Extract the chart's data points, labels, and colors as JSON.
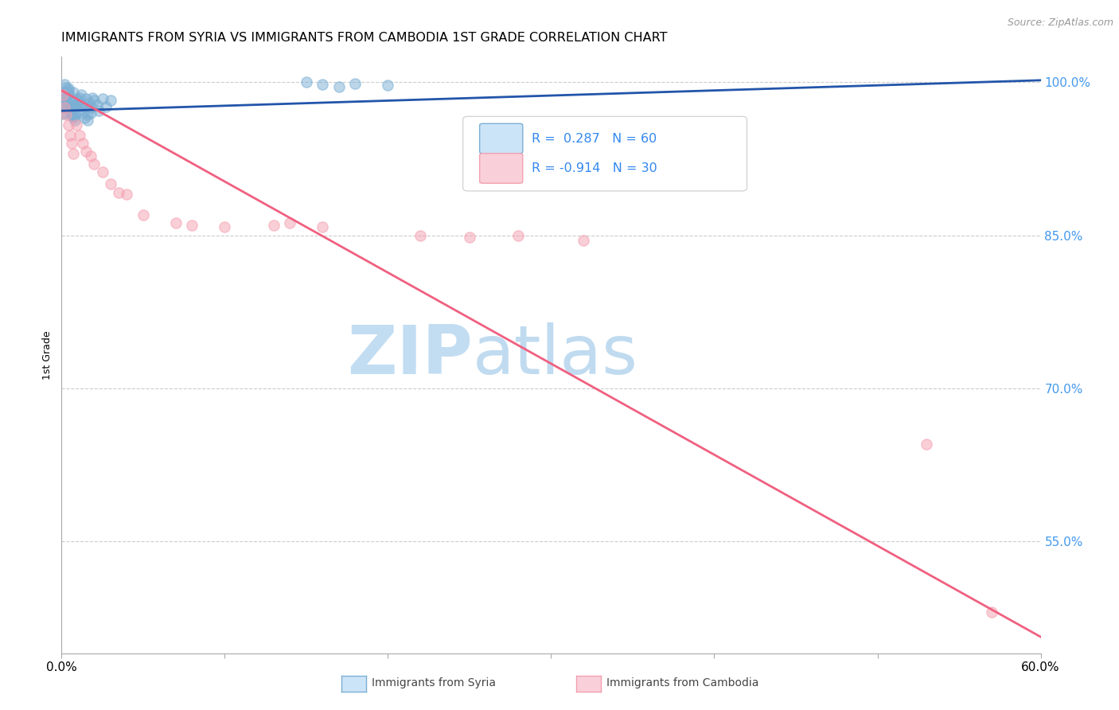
{
  "title": "IMMIGRANTS FROM SYRIA VS IMMIGRANTS FROM CAMBODIA 1ST GRADE CORRELATION CHART",
  "source": "Source: ZipAtlas.com",
  "ylabel": "1st Grade",
  "ylabel_right_ticks": [
    1.0,
    0.85,
    0.7,
    0.55
  ],
  "ylabel_right_labels": [
    "100.0%",
    "85.0%",
    "70.0%",
    "55.0%"
  ],
  "x_min": 0.0,
  "x_max": 0.6,
  "y_min": 0.44,
  "y_max": 1.025,
  "watermark_zip": "ZIP",
  "watermark_atlas": "atlas",
  "syria_color": "#7BAFD4",
  "cambodia_color": "#F4A0B0",
  "syria_line_color": "#2255AA",
  "cambodia_line_color": "#F06080",
  "syria_R": 0.287,
  "syria_N": 60,
  "cambodia_R": -0.914,
  "cambodia_N": 30,
  "syria_scatter_x": [
    0.001,
    0.002,
    0.001,
    0.003,
    0.002,
    0.004,
    0.003,
    0.005,
    0.004,
    0.006,
    0.003,
    0.002,
    0.001,
    0.005,
    0.006,
    0.007,
    0.004,
    0.003,
    0.008,
    0.009,
    0.002,
    0.005,
    0.007,
    0.006,
    0.004,
    0.003,
    0.008,
    0.006,
    0.005,
    0.007,
    0.01,
    0.009,
    0.008,
    0.011,
    0.012,
    0.01,
    0.013,
    0.014,
    0.012,
    0.011,
    0.015,
    0.016,
    0.014,
    0.017,
    0.018,
    0.016,
    0.019,
    0.015,
    0.02,
    0.018,
    0.022,
    0.025,
    0.023,
    0.027,
    0.03,
    0.15,
    0.16,
    0.17,
    0.18,
    0.2
  ],
  "syria_scatter_y": [
    0.98,
    0.975,
    0.99,
    0.97,
    0.985,
    0.988,
    0.982,
    0.978,
    0.992,
    0.968,
    0.976,
    0.983,
    0.969,
    0.978,
    0.972,
    0.966,
    0.988,
    0.995,
    0.978,
    0.984,
    0.998,
    0.976,
    0.99,
    0.968,
    0.994,
    0.983,
    0.969,
    0.978,
    0.972,
    0.966,
    0.98,
    0.975,
    0.963,
    0.985,
    0.978,
    0.982,
    0.97,
    0.965,
    0.988,
    0.972,
    0.984,
    0.968,
    0.976,
    0.98,
    0.975,
    0.963,
    0.985,
    0.978,
    0.982,
    0.97,
    0.978,
    0.984,
    0.972,
    0.976,
    0.982,
    1.0,
    0.998,
    0.996,
    0.999,
    0.997
  ],
  "cambodia_scatter_x": [
    0.001,
    0.002,
    0.003,
    0.004,
    0.005,
    0.006,
    0.007,
    0.009,
    0.011,
    0.013,
    0.015,
    0.018,
    0.02,
    0.025,
    0.03,
    0.035,
    0.04,
    0.05,
    0.07,
    0.08,
    0.1,
    0.13,
    0.14,
    0.16,
    0.22,
    0.25,
    0.28,
    0.32,
    0.53,
    0.57
  ],
  "cambodia_scatter_y": [
    0.988,
    0.975,
    0.968,
    0.958,
    0.948,
    0.94,
    0.93,
    0.958,
    0.948,
    0.94,
    0.932,
    0.928,
    0.92,
    0.912,
    0.9,
    0.892,
    0.89,
    0.87,
    0.862,
    0.86,
    0.858,
    0.86,
    0.862,
    0.858,
    0.85,
    0.848,
    0.85,
    0.845,
    0.645,
    0.48
  ],
  "syria_trendline_x": [
    0.0,
    0.6
  ],
  "syria_trendline_y": [
    0.972,
    1.002
  ],
  "cambodia_trendline_x": [
    0.0,
    0.6
  ],
  "cambodia_trendline_y": [
    0.992,
    0.456
  ]
}
